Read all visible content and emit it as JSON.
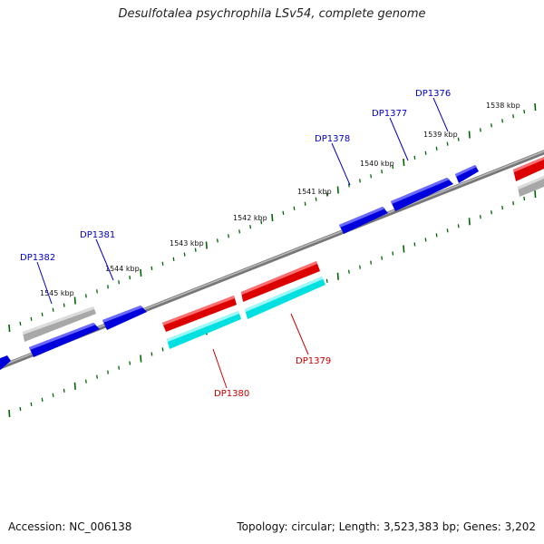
{
  "title": "Desulfotalea psychrophila LSv54, complete genome",
  "footer": {
    "accession": "Accession: NC_006138",
    "summary": "Topology: circular; Length: 3,523,383 bp; Genes: 3,202"
  },
  "colors": {
    "forward_gene": "#0000dd",
    "reverse_gene": "#dd0000",
    "reverse_gene_shadow": "#00e0e0",
    "other_feature": "#a8a8a8",
    "backbone": "#808080",
    "ticks": "#006600",
    "forward_label": "#0000cc",
    "reverse_label": "#cc0000"
  },
  "scale": {
    "unit": "kbp",
    "labels": [
      "1545 kbp",
      "1544 kbp",
      "1543 kbp",
      "1542 kbp",
      "1541 kbp",
      "1540 kbp",
      "1539 kbp",
      "1538 kbp"
    ]
  },
  "genes": [
    {
      "name": "DP1382",
      "strand": "forward"
    },
    {
      "name": "DP1381",
      "strand": "forward"
    },
    {
      "name": "DP1378",
      "strand": "forward"
    },
    {
      "name": "DP1377",
      "strand": "forward"
    },
    {
      "name": "DP1376",
      "strand": "forward"
    },
    {
      "name": "DP1380",
      "strand": "reverse"
    },
    {
      "name": "DP1379",
      "strand": "reverse"
    }
  ]
}
